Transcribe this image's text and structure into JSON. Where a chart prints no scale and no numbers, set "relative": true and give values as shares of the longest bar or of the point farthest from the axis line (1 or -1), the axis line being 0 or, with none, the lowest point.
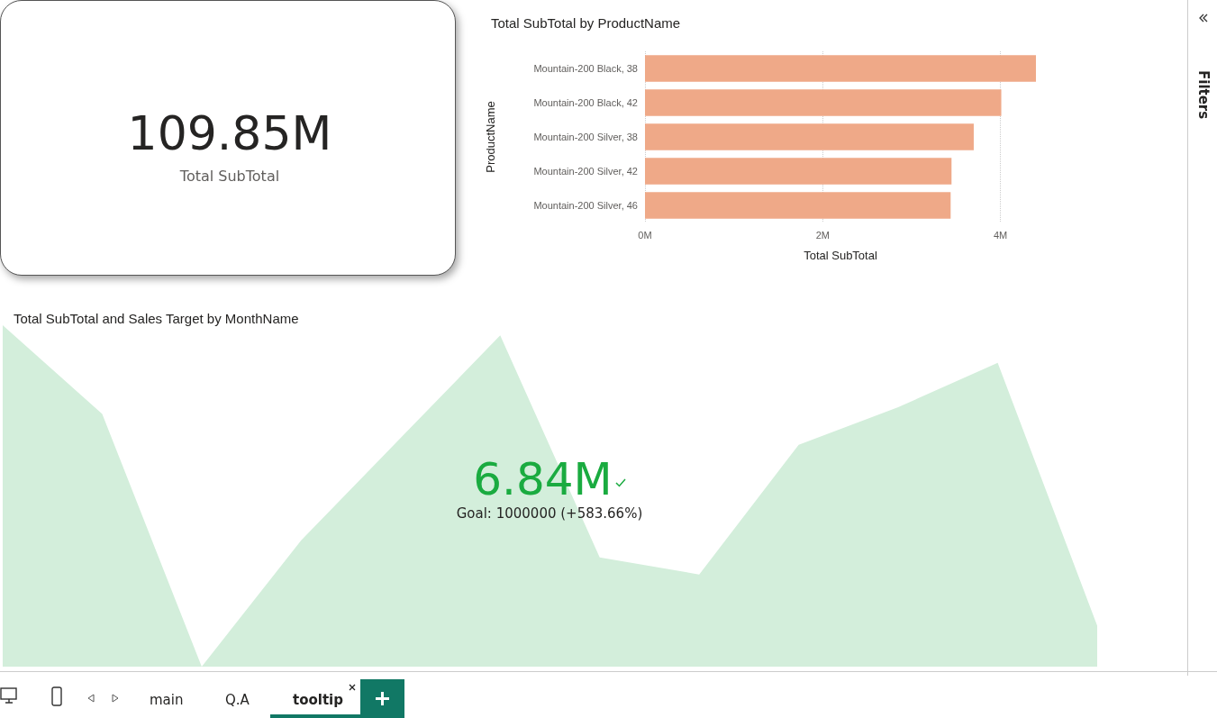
{
  "chart_data": [
    {
      "type": "other",
      "annotations": [
        "109.85M",
        "Total SubTotal"
      ]
    },
    {
      "type": "bar",
      "title": "Total SubTotal by ProductName",
      "orientation": "horizontal",
      "xlabel": "Total SubTotal",
      "ylabel": "ProductName",
      "categories": [
        "Mountain-200 Black, 38",
        "Mountain-200 Black, 42",
        "Mountain-200 Silver, 38",
        "Mountain-200 Silver, 42",
        "Mountain-200 Silver, 46"
      ],
      "values": [
        4.4,
        4.01,
        3.7,
        3.45,
        3.44
      ],
      "color": "#efa988",
      "xlim": [
        0,
        4.4
      ],
      "xticks": [
        {
          "value": 0,
          "label": "0M"
        },
        {
          "value": 2,
          "label": "2M"
        },
        {
          "value": 4,
          "label": "4M"
        }
      ],
      "grid": "x"
    },
    {
      "type": "area",
      "title": "Total SubTotal and Sales Target by MonthName",
      "relative": true,
      "categories": [
        null,
        null,
        null,
        null,
        null,
        null,
        null,
        null,
        null,
        null,
        null,
        null
      ],
      "values": [
        1,
        0.74,
        0,
        0.37,
        0.67,
        0.97,
        0.32,
        0.27,
        0.65,
        0.76,
        0.89,
        0.12
      ],
      "color": "#d3eedb",
      "annotations": [
        "6.84M",
        "Goal: 1000000 (+583.66%)"
      ]
    },
    {
      "type": "other",
      "annotations": [
        "Filters",
        "main",
        "Q.A",
        "tooltip"
      ]
    }
  ]
}
